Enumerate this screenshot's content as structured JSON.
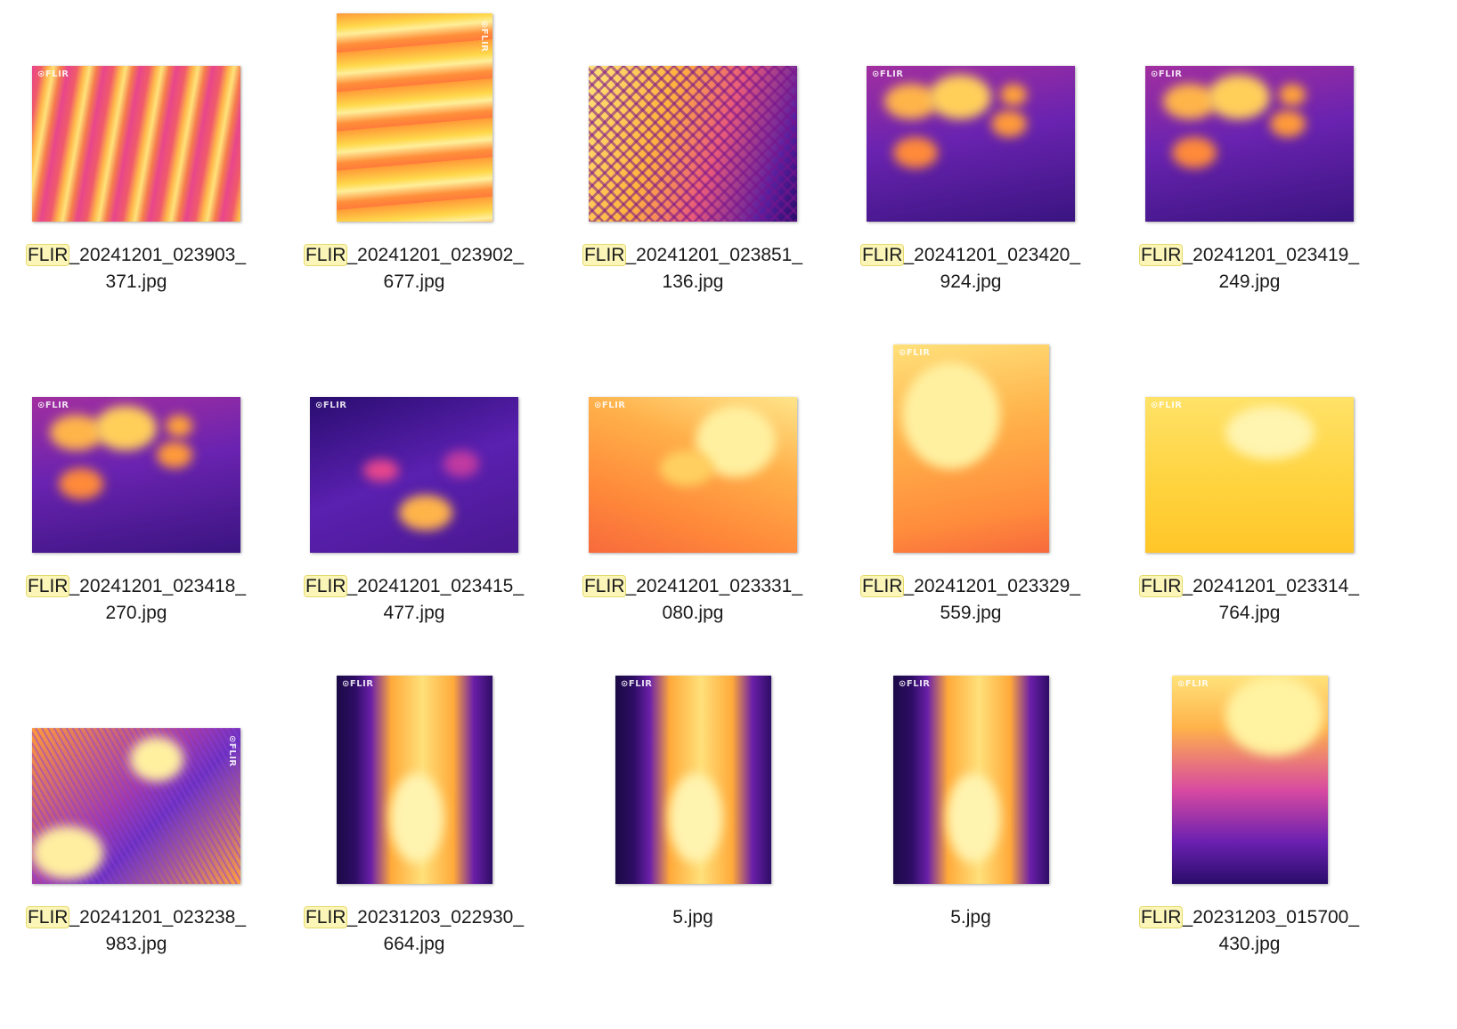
{
  "items": [
    {
      "hl": "FLIR",
      "rest": "_20241201_023903_",
      "line2": "371.jpg",
      "logo": "FLIR"
    },
    {
      "hl": "FLIR",
      "rest": "_20241201_023902_",
      "line2": "677.jpg",
      "logo": "FLIR"
    },
    {
      "hl": "FLIR",
      "rest": "_20241201_023851_",
      "line2": "136.jpg",
      "logo": ""
    },
    {
      "hl": "FLIR",
      "rest": "_20241201_023420_",
      "line2": "924.jpg",
      "logo": "FLIR"
    },
    {
      "hl": "FLIR",
      "rest": "_20241201_023419_",
      "line2": "249.jpg",
      "logo": "FLIR"
    },
    {
      "hl": "FLIR",
      "rest": "_20241201_023418_",
      "line2": "270.jpg",
      "logo": "FLIR"
    },
    {
      "hl": "FLIR",
      "rest": "_20241201_023415_",
      "line2": "477.jpg",
      "logo": "FLIR"
    },
    {
      "hl": "FLIR",
      "rest": "_20241201_023331_",
      "line2": "080.jpg",
      "logo": "FLIR"
    },
    {
      "hl": "FLIR",
      "rest": "_20241201_023329_",
      "line2": "559.jpg",
      "logo": "FLIR"
    },
    {
      "hl": "FLIR",
      "rest": "_20241201_023314_",
      "line2": "764.jpg",
      "logo": "FLIR"
    },
    {
      "hl": "FLIR",
      "rest": "_20241201_023238_",
      "line2": "983.jpg",
      "logo": "FLIR"
    },
    {
      "hl": "FLIR",
      "rest": "_20231203_022930_",
      "line2": "664.jpg",
      "logo": "FLIR"
    },
    {
      "hl": "",
      "rest": "",
      "line2": "5.jpg",
      "logo": "FLIR"
    },
    {
      "hl": "",
      "rest": "",
      "line2": "5.jpg",
      "logo": "FLIR"
    },
    {
      "hl": "FLIR",
      "rest": "_20231203_015700_",
      "line2": "430.jpg",
      "logo": "FLIR"
    }
  ],
  "colors": {
    "highlight": "#fbf6b8",
    "text": "#1a1a1a"
  }
}
